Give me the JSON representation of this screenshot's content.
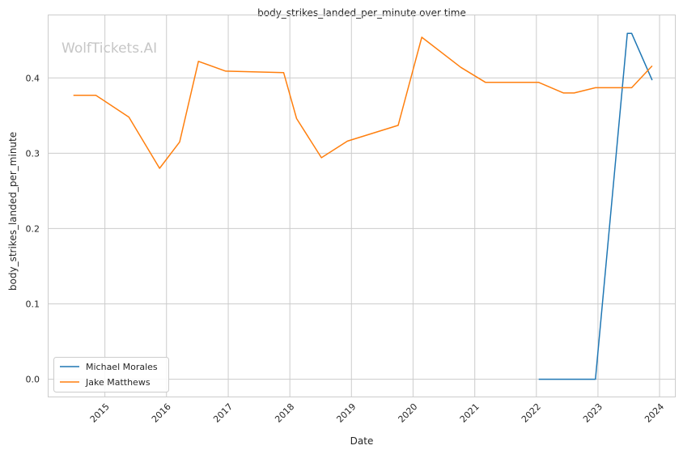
{
  "chart_data": {
    "type": "line",
    "title": "body_strikes_landed_per_minute over time",
    "xlabel": "Date",
    "ylabel": "body_strikes_landed_per_minute",
    "watermark": "WolfTickets.AI",
    "x_ticks": [
      "2015",
      "2016",
      "2017",
      "2018",
      "2019",
      "2020",
      "2021",
      "2022",
      "2023",
      "2024"
    ],
    "y_ticks": [
      "0.0",
      "0.1",
      "0.2",
      "0.3",
      "0.4"
    ],
    "xlim": [
      "2014-02-01",
      "2024-04-01"
    ],
    "ylim": [
      -0.023,
      0.483
    ],
    "grid": true,
    "legend_position": "lower-left",
    "colors": {
      "Michael Morales": "#1f77b4",
      "Jake Matthews": "#ff7f0e"
    },
    "series": [
      {
        "name": "Michael Morales",
        "points": [
          {
            "x": "2022-01-15",
            "y": 0.0
          },
          {
            "x": "2022-12-17",
            "y": 0.0
          },
          {
            "x": "2023-06-24",
            "y": 0.459
          },
          {
            "x": "2023-07-20",
            "y": 0.459
          },
          {
            "x": "2023-11-18",
            "y": 0.397
          }
        ]
      },
      {
        "name": "Jake Matthews",
        "points": [
          {
            "x": "2014-06-28",
            "y": 0.377
          },
          {
            "x": "2014-11-08",
            "y": 0.377
          },
          {
            "x": "2015-05-23",
            "y": 0.348
          },
          {
            "x": "2015-11-21",
            "y": 0.28
          },
          {
            "x": "2016-03-19",
            "y": 0.315
          },
          {
            "x": "2016-07-08",
            "y": 0.422
          },
          {
            "x": "2016-12-17",
            "y": 0.409
          },
          {
            "x": "2017-11-25",
            "y": 0.407
          },
          {
            "x": "2018-02-10",
            "y": 0.346
          },
          {
            "x": "2018-07-07",
            "y": 0.294
          },
          {
            "x": "2018-12-08",
            "y": 0.316
          },
          {
            "x": "2019-10-05",
            "y": 0.337
          },
          {
            "x": "2020-02-22",
            "y": 0.454
          },
          {
            "x": "2020-10-10",
            "y": 0.414
          },
          {
            "x": "2021-03-06",
            "y": 0.394
          },
          {
            "x": "2022-01-15",
            "y": 0.394
          },
          {
            "x": "2022-06-11",
            "y": 0.38
          },
          {
            "x": "2022-08-13",
            "y": 0.38
          },
          {
            "x": "2022-12-17",
            "y": 0.387
          },
          {
            "x": "2023-07-20",
            "y": 0.387
          },
          {
            "x": "2023-11-18",
            "y": 0.416
          }
        ]
      }
    ]
  }
}
